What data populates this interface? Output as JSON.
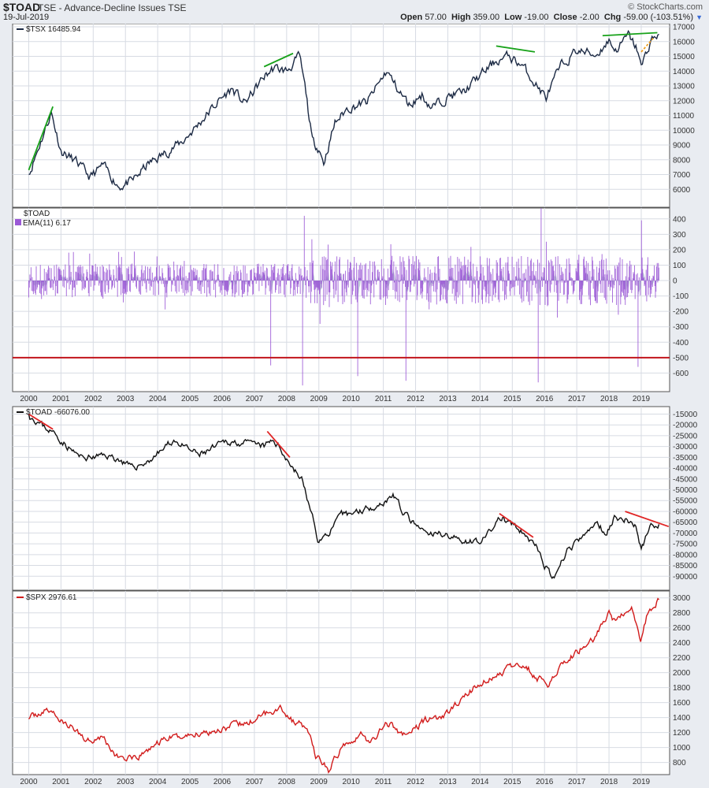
{
  "header": {
    "symbol": "$TOAD",
    "description": "TSE - Advance-Decline Issues  TSE",
    "date": "19-Jul-2019",
    "brand": "© StockCharts.com",
    "open_label": "Open",
    "open_value": "57.00",
    "high_label": "High",
    "high_value": "359.00",
    "low_label": "Low",
    "low_value": "-19.00",
    "close_label": "Close",
    "close_value": "-2.00",
    "chg_label": "Chg",
    "chg_value": "-59.00 (-103.51%)",
    "caret_icon": "triangle-down-icon"
  },
  "panels": {
    "tsx_label": "$TSX 16485.94",
    "toad_label": "$TOAD",
    "ema_label": "EMA(11) 6.17",
    "cum_label": "$TOAD -66076.00",
    "spx_label": "$SPX 2976.61"
  },
  "colors": {
    "tsx": "#1c2a44",
    "toad_bar": "#9b59d6",
    "ema_fill": "#8da5b8",
    "cum": "#111111",
    "spx": "#d11b1b",
    "trend_green": "#18a21a",
    "trend_red": "#e02525",
    "trend_orange": "#f0a020",
    "threshold": "#c2141b"
  },
  "chart_data": [
    {
      "type": "line",
      "series": [
        {
          "name": "$TSX",
          "x": [
            2000.0,
            2000.3,
            2000.7,
            2001.0,
            2001.5,
            2001.9,
            2002.3,
            2002.8,
            2003.2,
            2003.7,
            2004.2,
            2004.8,
            2005.3,
            2005.9,
            2006.3,
            2006.7,
            2007.3,
            2007.6,
            2008.0,
            2008.4,
            2008.6,
            2008.8,
            2009.0,
            2009.15,
            2009.5,
            2009.9,
            2010.5,
            2011.1,
            2011.5,
            2011.8,
            2012.2,
            2012.5,
            2013.0,
            2013.5,
            2014.0,
            2014.5,
            2014.9,
            2015.3,
            2015.7,
            2016.05,
            2016.5,
            2017.0,
            2017.6,
            2018.0,
            2018.2,
            2018.6,
            2018.9,
            2019.0,
            2019.3,
            2019.55
          ],
          "values": [
            7000,
            8800,
            11200,
            8600,
            7800,
            6800,
            7600,
            6200,
            6500,
            7700,
            8400,
            9300,
            10500,
            12000,
            12800,
            11800,
            13600,
            14200,
            14000,
            15000,
            12500,
            9200,
            8800,
            7800,
            10500,
            11500,
            11900,
            14000,
            12600,
            11700,
            12400,
            11500,
            12300,
            12600,
            13700,
            14700,
            15000,
            14400,
            13200,
            12200,
            14300,
            15400,
            15100,
            16100,
            15400,
            16400,
            15400,
            14200,
            16100,
            16500
          ]
        }
      ],
      "title": "",
      "ylim": [
        5000,
        17000
      ],
      "yticks": [
        6000,
        7000,
        8000,
        9000,
        10000,
        11000,
        12000,
        13000,
        14000,
        15000,
        16000,
        17000
      ],
      "annotations": [
        {
          "color": "green",
          "from": [
            2000.0,
            7300
          ],
          "to": [
            2000.75,
            11600
          ]
        },
        {
          "color": "green",
          "from": [
            2007.3,
            14300
          ],
          "to": [
            2008.2,
            15200
          ]
        },
        {
          "color": "green",
          "from": [
            2014.5,
            15700
          ],
          "to": [
            2015.7,
            15300
          ]
        },
        {
          "color": "green",
          "from": [
            2017.8,
            16400
          ],
          "to": [
            2019.5,
            16600
          ]
        },
        {
          "color": "orange",
          "from": [
            2019.0,
            15300
          ],
          "to": [
            2019.4,
            16300
          ]
        }
      ]
    },
    {
      "type": "bar",
      "series": [
        {
          "name": "$TOAD"
        },
        {
          "name": "EMA(11)"
        }
      ],
      "ylim": [
        -700,
        450
      ],
      "yticks": [
        400,
        300,
        200,
        100,
        0,
        -100,
        -200,
        -300,
        -400,
        -500,
        -600
      ],
      "threshold": -500,
      "spikes": [
        {
          "x": 2007.5,
          "y": -550
        },
        {
          "x": 2008.5,
          "y": -680
        },
        {
          "x": 2008.55,
          "y": 420
        },
        {
          "x": 2010.2,
          "y": -620
        },
        {
          "x": 2011.7,
          "y": -650
        },
        {
          "x": 2015.8,
          "y": -660
        },
        {
          "x": 2015.9,
          "y": 470
        },
        {
          "x": 2018.9,
          "y": -560
        },
        {
          "x": 2019.0,
          "y": 390
        }
      ]
    },
    {
      "type": "line",
      "series": [
        {
          "name": "$TOAD",
          "x": [
            2000.0,
            2000.4,
            2000.8,
            2001.2,
            2001.6,
            2002.0,
            2002.4,
            2002.8,
            2003.2,
            2003.7,
            2004.1,
            2004.5,
            2004.9,
            2005.3,
            2005.7,
            2006.1,
            2006.5,
            2006.9,
            2007.3,
            2007.6,
            2007.9,
            2008.2,
            2008.5,
            2008.8,
            2009.0,
            2009.3,
            2009.7,
            2010.2,
            2010.6,
            2011.0,
            2011.3,
            2011.6,
            2012.0,
            2012.4,
            2012.9,
            2013.3,
            2013.8,
            2014.2,
            2014.6,
            2014.9,
            2015.3,
            2015.7,
            2016.0,
            2016.3,
            2016.7,
            2017.2,
            2017.6,
            2017.9,
            2018.2,
            2018.5,
            2018.8,
            2019.0,
            2019.3,
            2019.55
          ],
          "values": [
            -15000,
            -20000,
            -24000,
            -30000,
            -35000,
            -35000,
            -34000,
            -36000,
            -40000,
            -37000,
            -32000,
            -27000,
            -31000,
            -34000,
            -31000,
            -28000,
            -28000,
            -29000,
            -30000,
            -27000,
            -33000,
            -40000,
            -46000,
            -63000,
            -74000,
            -70000,
            -62000,
            -60000,
            -58000,
            -56000,
            -52000,
            -60000,
            -67000,
            -71000,
            -70000,
            -73000,
            -74000,
            -72000,
            -63000,
            -65000,
            -70000,
            -75000,
            -85000,
            -92000,
            -78000,
            -72000,
            -65000,
            -70000,
            -62000,
            -64000,
            -66000,
            -78000,
            -66000,
            -66000
          ]
        }
      ],
      "ylim": [
        -95000,
        -13000
      ],
      "yticks": [
        -15000,
        -20000,
        -25000,
        -30000,
        -35000,
        -40000,
        -45000,
        -50000,
        -55000,
        -60000,
        -65000,
        -70000,
        -75000,
        -80000,
        -85000,
        -90000
      ],
      "annotations": [
        {
          "color": "red",
          "from": [
            2000.0,
            -15000
          ],
          "to": [
            2000.75,
            -22000
          ]
        },
        {
          "color": "red",
          "from": [
            2007.4,
            -23000
          ],
          "to": [
            2008.1,
            -35000
          ]
        },
        {
          "color": "red",
          "from": [
            2014.6,
            -61000
          ],
          "to": [
            2015.65,
            -72000
          ]
        },
        {
          "color": "red",
          "from": [
            2018.5,
            -60000
          ],
          "to": [
            2019.85,
            -67000
          ]
        }
      ]
    },
    {
      "type": "line",
      "series": [
        {
          "name": "$SPX",
          "x": [
            2000.0,
            2000.3,
            2000.7,
            2001.0,
            2001.4,
            2001.8,
            2002.3,
            2002.7,
            2003.0,
            2003.3,
            2003.8,
            2004.3,
            2004.8,
            2005.4,
            2005.9,
            2006.4,
            2006.8,
            2007.3,
            2007.8,
            2008.2,
            2008.6,
            2008.9,
            2009.1,
            2009.3,
            2009.8,
            2010.3,
            2010.6,
            2011.1,
            2011.7,
            2012.3,
            2012.9,
            2013.4,
            2013.9,
            2014.4,
            2014.9,
            2015.4,
            2015.7,
            2016.1,
            2016.5,
            2017.0,
            2017.5,
            2018.0,
            2018.2,
            2018.7,
            2018.98,
            2019.2,
            2019.55
          ],
          "values": [
            1380,
            1460,
            1500,
            1350,
            1250,
            1100,
            1150,
            880,
            860,
            830,
            1000,
            1130,
            1150,
            1200,
            1240,
            1300,
            1320,
            1450,
            1540,
            1350,
            1280,
            900,
            800,
            700,
            1050,
            1180,
            1050,
            1340,
            1150,
            1370,
            1420,
            1630,
            1830,
            1930,
            2060,
            2120,
            1940,
            1860,
            2100,
            2270,
            2450,
            2800,
            2650,
            2900,
            2400,
            2800,
            2976
          ]
        }
      ],
      "ylim": [
        680,
        3050
      ],
      "yticks": [
        800,
        1000,
        1200,
        1400,
        1600,
        1800,
        2000,
        2200,
        2400,
        2600,
        2800,
        3000
      ]
    }
  ],
  "xaxis": {
    "start": 1999.5,
    "end": 2019.88,
    "ticks": [
      "2000",
      "2001",
      "2002",
      "2003",
      "2004",
      "2005",
      "2006",
      "2007",
      "2008",
      "2009",
      "2010",
      "2011",
      "2012",
      "2013",
      "2014",
      "2015",
      "2016",
      "2017",
      "2018",
      "2019"
    ]
  }
}
